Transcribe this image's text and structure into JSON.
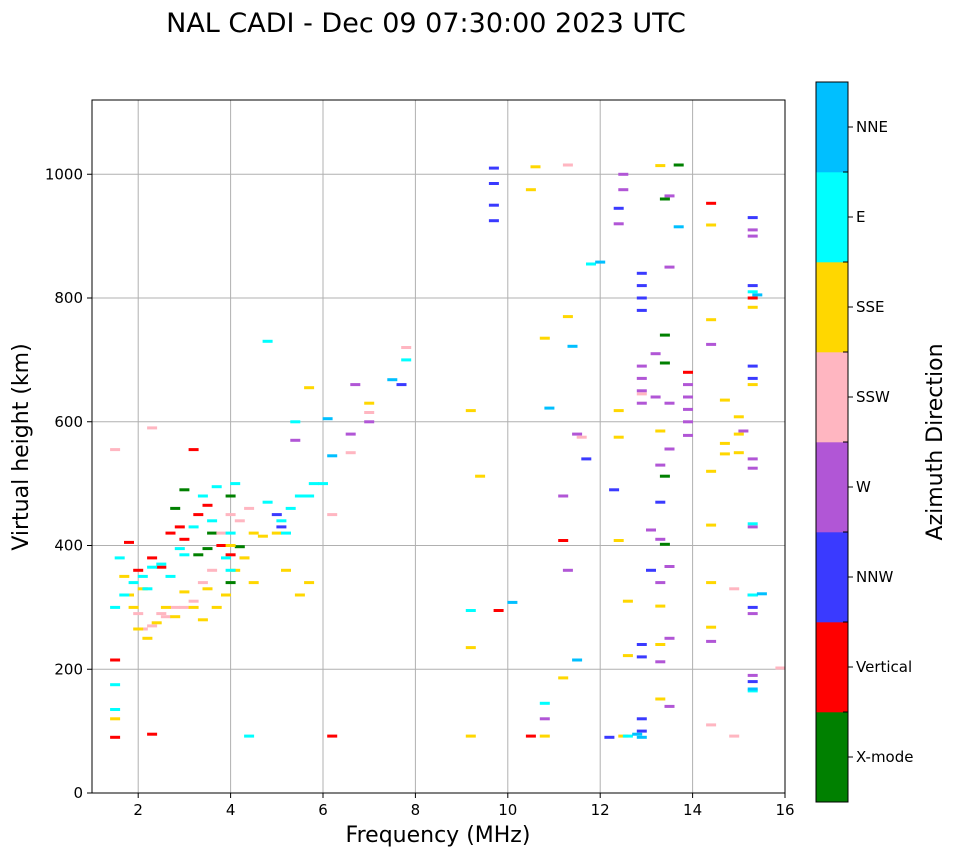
{
  "chart_data": {
    "type": "scatter",
    "title": "NAL CADI - Dec 09 07:30:00 2023 UTC",
    "xlabel": "Frequency (MHz)",
    "ylabel": "Virtual height (km)",
    "xlim": [
      1,
      16
    ],
    "ylim": [
      0,
      1120
    ],
    "xticks": [
      "2",
      "4",
      "6",
      "8",
      "10",
      "12",
      "14",
      "16"
    ],
    "xtick_values": [
      2,
      4,
      6,
      8,
      10,
      12,
      14,
      16
    ],
    "yticks": [
      "0",
      "200",
      "400",
      "600",
      "800",
      "1000"
    ],
    "ytick_values": [
      0,
      200,
      400,
      600,
      800,
      1000
    ],
    "grid": true,
    "colorbar": {
      "label": "Azimuth Direction",
      "categories": [
        {
          "name": "X-mode",
          "color": "#008000"
        },
        {
          "name": "Vertical",
          "color": "#ff0000"
        },
        {
          "name": "NNW",
          "color": "#3a3aff"
        },
        {
          "name": "W",
          "color": "#b156d6"
        },
        {
          "name": "SSW",
          "color": "#ffb6c1"
        },
        {
          "name": "SSE",
          "color": "#ffd700"
        },
        {
          "name": "E",
          "color": "#00ffff"
        },
        {
          "name": "NNE",
          "color": "#00bfff"
        }
      ]
    },
    "series": [
      {
        "name": "X-mode",
        "points": [
          [
            3.6,
            420
          ],
          [
            4.0,
            480
          ],
          [
            4.0,
            340
          ],
          [
            3.5,
            395
          ],
          [
            3.0,
            490
          ],
          [
            2.8,
            460
          ],
          [
            3.3,
            385
          ],
          [
            13.4,
            695
          ],
          [
            13.4,
            512
          ],
          [
            13.4,
            402
          ],
          [
            13.4,
            740
          ],
          [
            13.7,
            1015
          ],
          [
            13.4,
            960
          ],
          [
            4.2,
            398
          ]
        ]
      },
      {
        "name": "Vertical",
        "points": [
          [
            1.5,
            215
          ],
          [
            1.5,
            90
          ],
          [
            1.8,
            405
          ],
          [
            2.0,
            360
          ],
          [
            2.3,
            380
          ],
          [
            2.5,
            365
          ],
          [
            2.7,
            420
          ],
          [
            2.9,
            430
          ],
          [
            3.0,
            410
          ],
          [
            3.2,
            555
          ],
          [
            3.3,
            450
          ],
          [
            3.5,
            465
          ],
          [
            3.8,
            400
          ],
          [
            4.0,
            385
          ],
          [
            6.2,
            92
          ],
          [
            9.8,
            295
          ],
          [
            10.5,
            92
          ],
          [
            11.2,
            408
          ],
          [
            13.9,
            680
          ],
          [
            14.4,
            953
          ],
          [
            15.3,
            800
          ],
          [
            2.3,
            95
          ]
        ]
      },
      {
        "name": "NNW",
        "points": [
          [
            9.7,
            1010
          ],
          [
            9.7,
            985
          ],
          [
            9.7,
            950
          ],
          [
            9.7,
            925
          ],
          [
            12.4,
            945
          ],
          [
            12.3,
            490
          ],
          [
            12.9,
            840
          ],
          [
            12.9,
            820
          ],
          [
            12.9,
            800
          ],
          [
            12.9,
            780
          ],
          [
            12.9,
            240
          ],
          [
            12.9,
            220
          ],
          [
            12.9,
            120
          ],
          [
            12.9,
            100
          ],
          [
            13.3,
            470
          ],
          [
            15.3,
            930
          ],
          [
            15.3,
            820
          ],
          [
            15.3,
            690
          ],
          [
            15.3,
            670
          ],
          [
            15.3,
            320
          ],
          [
            15.3,
            300
          ],
          [
            15.3,
            180
          ],
          [
            11.7,
            540
          ],
          [
            5.0,
            450
          ],
          [
            5.1,
            430
          ],
          [
            7.7,
            660
          ],
          [
            13.1,
            360
          ],
          [
            12.2,
            90
          ]
        ]
      },
      {
        "name": "W",
        "points": [
          [
            12.4,
            920
          ],
          [
            12.9,
            690
          ],
          [
            12.9,
            670
          ],
          [
            12.9,
            650
          ],
          [
            12.9,
            630
          ],
          [
            13.2,
            710
          ],
          [
            13.2,
            640
          ],
          [
            13.5,
            965
          ],
          [
            13.5,
            850
          ],
          [
            13.5,
            630
          ],
          [
            13.5,
            556
          ],
          [
            13.5,
            366
          ],
          [
            13.5,
            250
          ],
          [
            13.3,
            530
          ],
          [
            13.3,
            410
          ],
          [
            13.3,
            340
          ],
          [
            13.1,
            425
          ],
          [
            13.3,
            212
          ],
          [
            13.5,
            140
          ],
          [
            13.9,
            660
          ],
          [
            13.9,
            640
          ],
          [
            13.9,
            620
          ],
          [
            13.9,
            600
          ],
          [
            13.9,
            578
          ],
          [
            14.4,
            725
          ],
          [
            14.4,
            245
          ],
          [
            15.3,
            910
          ],
          [
            15.3,
            900
          ],
          [
            15.3,
            540
          ],
          [
            15.3,
            525
          ],
          [
            15.3,
            430
          ],
          [
            15.3,
            290
          ],
          [
            15.3,
            190
          ],
          [
            15.1,
            585
          ],
          [
            11.2,
            480
          ],
          [
            11.5,
            580
          ],
          [
            11.3,
            360
          ],
          [
            10.8,
            120
          ],
          [
            6.6,
            580
          ],
          [
            6.7,
            660
          ],
          [
            7.0,
            600
          ],
          [
            5.4,
            570
          ],
          [
            12.5,
            1000
          ],
          [
            12.5,
            975
          ]
        ]
      },
      {
        "name": "SSW",
        "points": [
          [
            1.5,
            555
          ],
          [
            2.0,
            290
          ],
          [
            2.1,
            265
          ],
          [
            2.3,
            270
          ],
          [
            2.5,
            290
          ],
          [
            2.6,
            285
          ],
          [
            2.8,
            300
          ],
          [
            3.0,
            300
          ],
          [
            3.2,
            310
          ],
          [
            3.4,
            340
          ],
          [
            3.6,
            360
          ],
          [
            3.8,
            420
          ],
          [
            4.0,
            450
          ],
          [
            4.2,
            440
          ],
          [
            4.4,
            460
          ],
          [
            4.3,
            380
          ],
          [
            6.2,
            450
          ],
          [
            6.6,
            550
          ],
          [
            7.0,
            615
          ],
          [
            7.8,
            720
          ],
          [
            11.3,
            1015
          ],
          [
            11.6,
            575
          ],
          [
            12.9,
            645
          ],
          [
            14.4,
            110
          ],
          [
            14.9,
            92
          ],
          [
            14.9,
            330
          ],
          [
            15.9,
            202
          ],
          [
            2.3,
            590
          ]
        ]
      },
      {
        "name": "SSE",
        "points": [
          [
            1.5,
            120
          ],
          [
            1.7,
            350
          ],
          [
            1.8,
            320
          ],
          [
            1.9,
            300
          ],
          [
            2.0,
            265
          ],
          [
            2.1,
            330
          ],
          [
            2.2,
            250
          ],
          [
            2.4,
            275
          ],
          [
            2.6,
            300
          ],
          [
            2.8,
            285
          ],
          [
            3.0,
            325
          ],
          [
            3.2,
            300
          ],
          [
            3.4,
            280
          ],
          [
            3.5,
            330
          ],
          [
            3.7,
            300
          ],
          [
            3.9,
            320
          ],
          [
            4.0,
            400
          ],
          [
            4.1,
            360
          ],
          [
            4.3,
            380
          ],
          [
            4.5,
            420
          ],
          [
            4.5,
            340
          ],
          [
            4.7,
            415
          ],
          [
            5.0,
            420
          ],
          [
            5.2,
            360
          ],
          [
            5.5,
            320
          ],
          [
            5.7,
            340
          ],
          [
            5.7,
            655
          ],
          [
            7.0,
            630
          ],
          [
            9.2,
            92
          ],
          [
            9.2,
            235
          ],
          [
            9.2,
            618
          ],
          [
            9.4,
            512
          ],
          [
            10.5,
            975
          ],
          [
            10.6,
            1012
          ],
          [
            10.8,
            735
          ],
          [
            10.8,
            92
          ],
          [
            11.3,
            770
          ],
          [
            11.2,
            186
          ],
          [
            12.4,
            408
          ],
          [
            12.4,
            618
          ],
          [
            12.4,
            575
          ],
          [
            12.6,
            310
          ],
          [
            12.6,
            222
          ],
          [
            13.3,
            1014
          ],
          [
            13.3,
            302
          ],
          [
            13.3,
            240
          ],
          [
            13.3,
            152
          ],
          [
            13.3,
            585
          ],
          [
            14.4,
            918
          ],
          [
            14.4,
            765
          ],
          [
            14.4,
            520
          ],
          [
            14.4,
            433
          ],
          [
            14.4,
            340
          ],
          [
            14.4,
            268
          ],
          [
            14.7,
            635
          ],
          [
            14.7,
            565
          ],
          [
            14.7,
            548
          ],
          [
            15.0,
            608
          ],
          [
            15.0,
            580
          ],
          [
            15.0,
            550
          ],
          [
            15.3,
            785
          ],
          [
            15.3,
            660
          ],
          [
            12.5,
            92
          ]
        ]
      },
      {
        "name": "E",
        "points": [
          [
            1.5,
            175
          ],
          [
            1.5,
            135
          ],
          [
            1.5,
            300
          ],
          [
            1.6,
            380
          ],
          [
            1.7,
            320
          ],
          [
            1.9,
            340
          ],
          [
            2.1,
            350
          ],
          [
            2.2,
            330
          ],
          [
            2.3,
            365
          ],
          [
            2.5,
            370
          ],
          [
            2.7,
            350
          ],
          [
            2.9,
            395
          ],
          [
            3.0,
            385
          ],
          [
            3.2,
            430
          ],
          [
            3.4,
            480
          ],
          [
            3.6,
            440
          ],
          [
            3.7,
            495
          ],
          [
            3.9,
            380
          ],
          [
            4.0,
            420
          ],
          [
            4.0,
            360
          ],
          [
            4.1,
            500
          ],
          [
            4.4,
            92
          ],
          [
            4.8,
            470
          ],
          [
            5.1,
            440
          ],
          [
            5.2,
            420
          ],
          [
            5.3,
            460
          ],
          [
            5.4,
            600
          ],
          [
            5.5,
            480
          ],
          [
            5.7,
            480
          ],
          [
            4.8,
            730
          ],
          [
            5.8,
            500
          ],
          [
            6.0,
            500
          ],
          [
            7.8,
            700
          ],
          [
            9.2,
            295
          ],
          [
            10.8,
            145
          ],
          [
            11.8,
            855
          ],
          [
            12.6,
            92
          ],
          [
            15.3,
            435
          ],
          [
            15.3,
            320
          ],
          [
            15.3,
            810
          ],
          [
            15.3,
            165
          ]
        ]
      },
      {
        "name": "NNE",
        "points": [
          [
            6.1,
            605
          ],
          [
            6.2,
            545
          ],
          [
            7.5,
            668
          ],
          [
            10.1,
            308
          ],
          [
            10.9,
            622
          ],
          [
            11.4,
            722
          ],
          [
            11.5,
            215
          ],
          [
            12.0,
            858
          ],
          [
            13.7,
            915
          ],
          [
            15.3,
            168
          ],
          [
            15.5,
            322
          ],
          [
            15.4,
            805
          ],
          [
            12.9,
            90
          ],
          [
            12.8,
            95
          ]
        ]
      }
    ]
  }
}
